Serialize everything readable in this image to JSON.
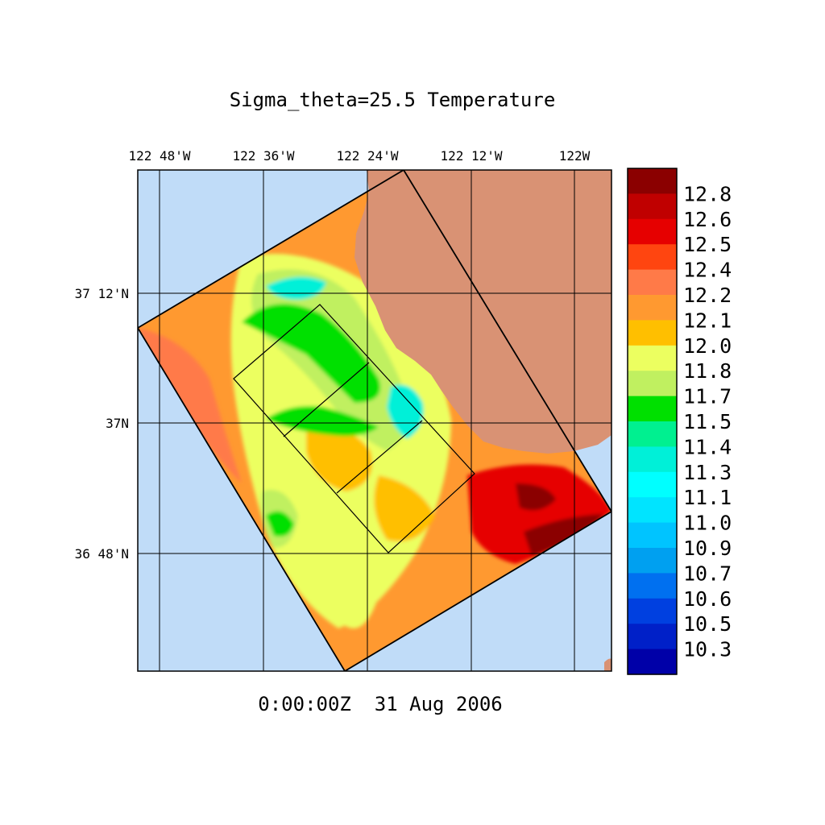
{
  "title": "Sigma_theta=25.5 Temperature",
  "timestamp": "0:00:00Z  31 Aug 2006",
  "colors": {
    "ocean": "#c0dcf8",
    "land": "#d99274",
    "grid": "#000000"
  },
  "axes": {
    "lon_ticks": [
      "122 48'W",
      "122 36'W",
      "122 24'W",
      "122 12'W",
      "122W"
    ],
    "lat_ticks": [
      "37 12'N",
      "37N",
      "36 48'N"
    ]
  },
  "colorbar": {
    "labels": [
      "12.8",
      "12.6",
      "12.5",
      "12.4",
      "12.2",
      "12.1",
      "12.0",
      "11.8",
      "11.7",
      "11.5",
      "11.4",
      "11.3",
      "11.1",
      "11.0",
      "10.9",
      "10.7",
      "10.6",
      "10.5",
      "10.3"
    ],
    "colors": [
      "#8b0000",
      "#c00000",
      "#e60000",
      "#ff4510",
      "#ff7a48",
      "#ff9930",
      "#ffbf00",
      "#ecff60",
      "#c0f060",
      "#00e000",
      "#00f090",
      "#00f0d8",
      "#00ffff",
      "#00e4ff",
      "#00c4ff",
      "#00a0f0",
      "#0070f0",
      "#0040e0",
      "#0020c8",
      "#0000a8"
    ]
  },
  "chart_data": {
    "type": "heatmap",
    "title": "Sigma_theta=25.5 Temperature",
    "variable": "Temperature",
    "isopycnal": "Sigma_theta=25.5",
    "time": "0:00:00Z  31 Aug 2006",
    "lon_range_deg": [
      -122.85,
      -121.92
    ],
    "lat_range_deg": [
      36.63,
      37.31
    ],
    "value_range": [
      10.3,
      12.8
    ]
  }
}
